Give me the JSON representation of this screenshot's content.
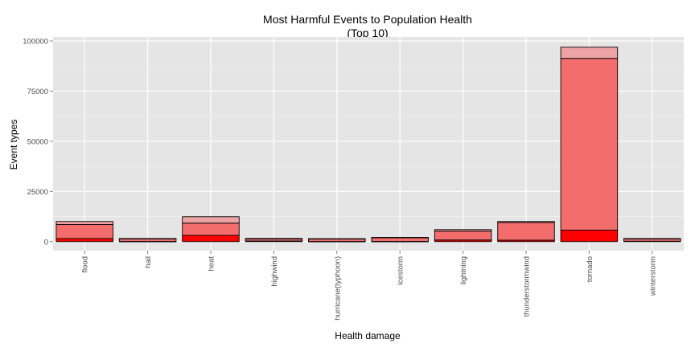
{
  "chart_data": {
    "type": "bar",
    "title": "Most Harmful Events to Population Health",
    "subtitle": "(Top 10)",
    "xlabel": "Health damage",
    "ylabel": "Event types",
    "ylim": [
      -4500,
      102000
    ],
    "yticks": [
      0,
      25000,
      50000,
      75000,
      100000
    ],
    "yticklabels": [
      "0",
      "25000",
      "50000",
      "75000",
      "100000"
    ],
    "grid": true,
    "categories": [
      "flood",
      "hail",
      "heat",
      "highwind",
      "hurricane(typhoon)",
      "icestorm",
      "lightning",
      "thunderstormwind",
      "tornado",
      "winterstorm"
    ],
    "series": [
      {
        "values": [
          1500,
          100,
          3100,
          300,
          100,
          100,
          800,
          700,
          5700,
          200
        ]
      },
      {
        "values": [
          8500,
          1400,
          9200,
          1300,
          1300,
          2000,
          5200,
          9500,
          91300,
          1300
        ]
      },
      {
        "values": [
          10000,
          1500,
          12400,
          1550,
          1450,
          2100,
          6000,
          10000,
          96900,
          1500
        ]
      }
    ],
    "colors": {
      "panel_bg": "#e5e5e5",
      "grid_major": "#ffffff",
      "grid_minor": "#f0f0f0",
      "bar_dark": "#ff0000",
      "bar_mid": "#f46d6d",
      "bar_light": "#eda3a3",
      "bar_outline": "#000000",
      "tick_text": "#4d4d4d"
    }
  }
}
